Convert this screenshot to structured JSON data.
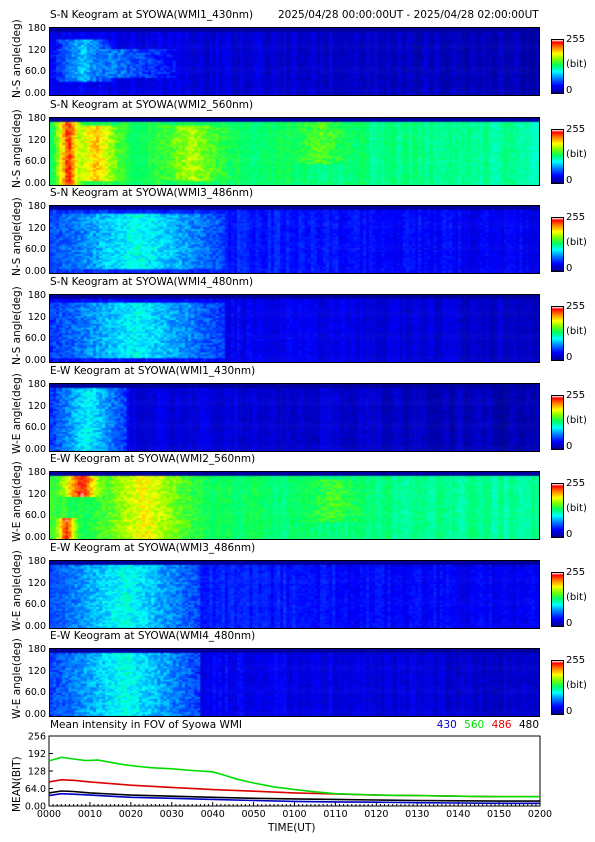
{
  "header": {
    "time_range": "2025/04/28 00:00:00UT - 2025/04/28 02:00:00UT"
  },
  "chart_data": [
    {
      "type": "heatmap",
      "title": "S-N Keogram at SYOWA(WMI1_430nm)",
      "ylabel": "N-S angle(deg)",
      "yticks": [
        "180",
        "120",
        "60.0",
        "0.00"
      ],
      "colorbar": {
        "max": "255",
        "unit": "(bit)",
        "min": "0"
      },
      "intensity": 0.12,
      "colors": {
        "bg": "#10259e",
        "top": "#000060"
      },
      "features": [
        {
          "x": [
            0.01,
            0.12
          ],
          "y": [
            0.25,
            0.85
          ],
          "level": 0.35
        },
        {
          "x": [
            0.0,
            0.25
          ],
          "y": [
            0.3,
            0.7
          ],
          "level": 0.28
        }
      ]
    },
    {
      "type": "heatmap",
      "title": "S-N Keogram at SYOWA(WMI2_560nm)",
      "ylabel": "N-S angle(deg)",
      "yticks": [
        "180",
        "120",
        "60.0",
        "0.00"
      ],
      "colorbar": {
        "max": "255",
        "unit": "(bit)",
        "min": "0"
      },
      "intensity": 0.55,
      "colors": {
        "bg": "#1b6ee0",
        "top": "#000070"
      },
      "features": [
        {
          "x": [
            0.0,
            0.07
          ],
          "y": [
            0.0,
            1.0
          ],
          "level": 0.95
        },
        {
          "x": [
            0.0,
            0.18
          ],
          "y": [
            0.1,
            0.9
          ],
          "level": 0.8
        },
        {
          "x": [
            0.12,
            0.45
          ],
          "y": [
            0.1,
            0.9
          ],
          "level": 0.68
        },
        {
          "x": [
            0.35,
            0.75
          ],
          "y": [
            0.35,
            0.95
          ],
          "level": 0.6
        }
      ]
    },
    {
      "type": "heatmap",
      "title": "S-N Keogram at SYOWA(WMI3_486nm)",
      "ylabel": "N-S angle(deg)",
      "yticks": [
        "180",
        "120",
        "60.0",
        "0.00"
      ],
      "colorbar": {
        "max": "255",
        "unit": "(bit)",
        "min": "0"
      },
      "intensity": 0.2,
      "colors": {
        "bg": "#2c7ad8",
        "top": "#000060"
      },
      "features": [
        {
          "x": [
            0.0,
            0.35
          ],
          "y": [
            0.1,
            0.9
          ],
          "level": 0.42
        }
      ]
    },
    {
      "type": "heatmap",
      "title": "S-N Keogram at SYOWA(WMI4_480nm)",
      "ylabel": "N-S angle(deg)",
      "yticks": [
        "180",
        "120",
        "60.0",
        "0.00"
      ],
      "colorbar": {
        "max": "255",
        "unit": "(bit)",
        "min": "0"
      },
      "intensity": 0.15,
      "colors": {
        "bg": "#1850c8",
        "top": "#000060"
      },
      "features": [
        {
          "x": [
            0.0,
            0.35
          ],
          "y": [
            0.1,
            0.9
          ],
          "level": 0.4
        }
      ]
    },
    {
      "type": "heatmap",
      "title": "E-W Keogram at SYOWA(WMI1_430nm)",
      "ylabel": "W-E angle(deg)",
      "yticks": [
        "180",
        "120",
        "60.0",
        "0.00"
      ],
      "colorbar": {
        "max": "255",
        "unit": "(bit)",
        "min": "0"
      },
      "intensity": 0.12,
      "colors": {
        "bg": "#10259e",
        "top": "#000060"
      },
      "features": [
        {
          "x": [
            0.0,
            0.15
          ],
          "y": [
            0.05,
            0.95
          ],
          "level": 0.4
        }
      ]
    },
    {
      "type": "heatmap",
      "title": "E-W Keogram at SYOWA(WMI2_560nm)",
      "ylabel": "W-E angle(deg)",
      "yticks": [
        "180",
        "120",
        "60.0",
        "0.00"
      ],
      "colorbar": {
        "max": "255",
        "unit": "(bit)",
        "min": "0"
      },
      "intensity": 0.55,
      "colors": {
        "bg": "#1b6ee0",
        "top": "#000070"
      },
      "features": [
        {
          "x": [
            0.0,
            0.12
          ],
          "y": [
            0.65,
            1.0
          ],
          "level": 0.95
        },
        {
          "x": [
            0.0,
            0.06
          ],
          "y": [
            0.0,
            0.35
          ],
          "level": 0.95
        },
        {
          "x": [
            0.0,
            0.38
          ],
          "y": [
            0.05,
            0.95
          ],
          "level": 0.75
        },
        {
          "x": [
            0.35,
            0.8
          ],
          "y": [
            0.3,
            0.9
          ],
          "level": 0.58
        }
      ]
    },
    {
      "type": "heatmap",
      "title": "E-W Keogram at SYOWA(WMI3_486nm)",
      "ylabel": "W-E angle(deg)",
      "yticks": [
        "180",
        "120",
        "60.0",
        "0.00"
      ],
      "colorbar": {
        "max": "255",
        "unit": "(bit)",
        "min": "0"
      },
      "intensity": 0.2,
      "colors": {
        "bg": "#2c7ad8",
        "top": "#000060"
      },
      "features": [
        {
          "x": [
            0.0,
            0.3
          ],
          "y": [
            0.05,
            0.95
          ],
          "level": 0.42
        }
      ]
    },
    {
      "type": "heatmap",
      "title": "E-W Keogram at SYOWA(WMI4_480nm)",
      "ylabel": "W-E angle(deg)",
      "yticks": [
        "180",
        "120",
        "60.0",
        "0.00"
      ],
      "colorbar": {
        "max": "255",
        "unit": "(bit)",
        "min": "0"
      },
      "intensity": 0.15,
      "colors": {
        "bg": "#1850c8",
        "top": "#000060"
      },
      "features": [
        {
          "x": [
            0.0,
            0.3
          ],
          "y": [
            0.05,
            0.95
          ],
          "level": 0.42
        }
      ]
    },
    {
      "type": "line",
      "title": "Mean intensity in FOV of Syowa WMI",
      "xlabel": "TIME(UT)",
      "ylabel": "MEAN(BIT)",
      "yticks": [
        "256",
        "192",
        "128",
        "64.0",
        "0.00"
      ],
      "ylim": [
        0,
        256
      ],
      "xlim": [
        0,
        120
      ],
      "xticks": [
        "0000",
        "0010",
        "0020",
        "0030",
        "0040",
        "0050",
        "0100",
        "0110",
        "0120",
        "0130",
        "0140",
        "0150",
        "0200"
      ],
      "series": [
        {
          "name": "430",
          "color": "#0000c0",
          "x": [
            0,
            3,
            6,
            10,
            15,
            20,
            30,
            40,
            50,
            60,
            70,
            80,
            90,
            100,
            110,
            120
          ],
          "y": [
            38,
            45,
            43,
            40,
            36,
            32,
            28,
            24,
            20,
            17,
            15,
            14,
            12,
            11,
            10,
            10
          ]
        },
        {
          "name": "560",
          "color": "#00dd00",
          "x": [
            0,
            3,
            6,
            9,
            12,
            15,
            18,
            21,
            25,
            30,
            35,
            40,
            43,
            46,
            50,
            55,
            60,
            65,
            70,
            80,
            90,
            100,
            110,
            120
          ],
          "y": [
            165,
            178,
            172,
            166,
            168,
            160,
            152,
            146,
            140,
            136,
            130,
            125,
            112,
            98,
            84,
            70,
            60,
            52,
            45,
            40,
            38,
            36,
            34,
            34
          ]
        },
        {
          "name": "486",
          "color": "#dd0000",
          "x": [
            0,
            3,
            6,
            10,
            15,
            20,
            30,
            40,
            50,
            60,
            70,
            80,
            90,
            100,
            110,
            120
          ],
          "y": [
            88,
            96,
            94,
            88,
            82,
            76,
            68,
            60,
            54,
            48,
            44,
            40,
            38,
            36,
            34,
            34
          ]
        },
        {
          "name": "480",
          "color": "#000000",
          "x": [
            0,
            3,
            6,
            10,
            15,
            20,
            30,
            40,
            50,
            60,
            70,
            80,
            90,
            100,
            110,
            120
          ],
          "y": [
            48,
            55,
            53,
            48,
            44,
            40,
            36,
            32,
            28,
            26,
            24,
            22,
            20,
            19,
            18,
            18
          ]
        }
      ]
    }
  ]
}
